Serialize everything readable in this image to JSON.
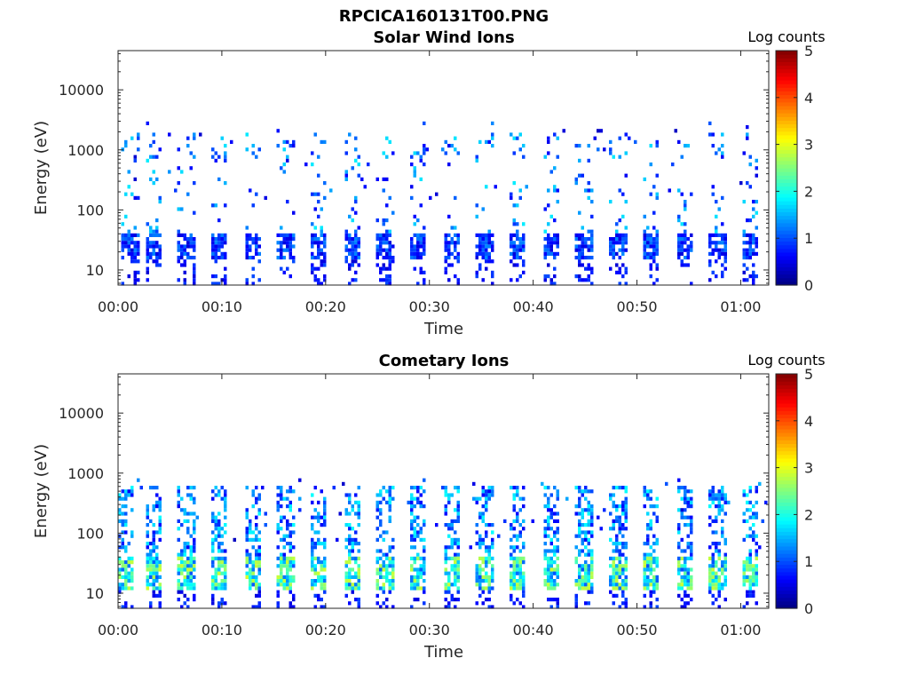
{
  "figure_title": "RPCICA160131T00.PNG",
  "chart_data": [
    {
      "type": "heatmap",
      "title": "Solar Wind Ions",
      "xlabel": "Time",
      "ylabel": "Energy (eV)",
      "x_ticks": [
        "00:00",
        "00:10",
        "00:20",
        "00:30",
        "00:40",
        "00:50",
        "01:00"
      ],
      "x_tick_minutes": [
        0,
        10,
        20,
        30,
        40,
        50,
        60
      ],
      "xlim_minutes": [
        0,
        62.7
      ],
      "y_scale": "log",
      "y_ticks": [
        "10",
        "100",
        "1000",
        "10000"
      ],
      "y_tick_values": [
        10,
        100,
        1000,
        10000
      ],
      "ylim": [
        5.6,
        45000
      ],
      "colorbar": {
        "label": "Log counts",
        "ticks": [
          "0",
          "1",
          "2",
          "3",
          "4",
          "5"
        ],
        "range": [
          0,
          5
        ],
        "colormap": "jet"
      },
      "scan_minutes": [
        1.0,
        3.2,
        6.4,
        9.6,
        12.8,
        16.0,
        19.2,
        22.4,
        25.6,
        28.8,
        32.0,
        35.2,
        38.4,
        41.6,
        44.8,
        48.0,
        51.2,
        54.4,
        57.6,
        60.8
      ],
      "low_energy_band_eV": [
        15,
        45
      ],
      "low_energy_peak_log_counts": 1.3,
      "high_energy_band_eV": [
        150,
        2000
      ],
      "high_energy_peak_log_counts": 1.8,
      "grid": false
    },
    {
      "type": "heatmap",
      "title": "Cometary Ions",
      "xlabel": "Time",
      "ylabel": "Energy (eV)",
      "x_ticks": [
        "00:00",
        "00:10",
        "00:20",
        "00:30",
        "00:40",
        "00:50",
        "01:00"
      ],
      "x_tick_minutes": [
        0,
        10,
        20,
        30,
        40,
        50,
        60
      ],
      "xlim_minutes": [
        0,
        62.7
      ],
      "y_scale": "log",
      "y_ticks": [
        "10",
        "100",
        "1000",
        "10000"
      ],
      "y_tick_values": [
        10,
        100,
        1000,
        10000
      ],
      "ylim": [
        5.6,
        45000
      ],
      "colorbar": {
        "label": "Log counts",
        "ticks": [
          "0",
          "1",
          "2",
          "3",
          "4",
          "5"
        ],
        "range": [
          0,
          5
        ],
        "colormap": "jet"
      },
      "scan_minutes": [
        0.6,
        3.2,
        6.4,
        9.6,
        12.8,
        16.0,
        19.2,
        22.4,
        25.6,
        28.8,
        32.0,
        35.2,
        38.4,
        41.6,
        44.8,
        48.0,
        51.2,
        54.4,
        57.6,
        60.8
      ],
      "low_energy_band_eV": [
        12,
        45
      ],
      "low_energy_peak_log_counts": 2.9,
      "high_energy_band_eV": [
        60,
        700
      ],
      "high_energy_peak_log_counts": 1.9,
      "grid": false
    }
  ]
}
